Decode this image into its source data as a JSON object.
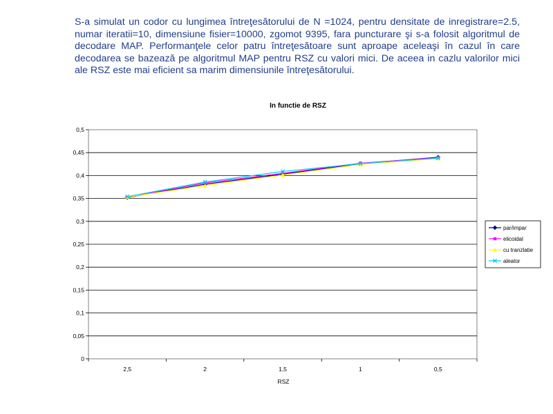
{
  "slide": {
    "paragraph": "S-a simulat un codor cu lungimea întreţesătorului de N =1024, pentru densitate de inregistrare=2.5, numar iteratii=10, dimensiune fisier=10000, zgomot 9395, fara puncturare şi s-a folosit algoritmul de decodare MAP. Performanţele celor patru întreţesătoare sunt aproape aceleaşi în cazul în care decodarea se bazează pe algoritmul MAP pentru RSZ cu valori mici. De aceea in cazlu valorilor mici ale RSZ este mai eficient sa marim dimensiunile întreţesătorului."
  },
  "chart_data": {
    "type": "line",
    "title": "In functie de RSZ",
    "xlabel": "RSZ",
    "ylabel": "",
    "categories": [
      "2,5",
      "2",
      "1,5",
      "1",
      "0,5"
    ],
    "ylim": [
      0,
      0.5
    ],
    "yticks": [
      "0",
      "0,05",
      "0,1",
      "0,15",
      "0,2",
      "0,25",
      "0,3",
      "0,35",
      "0,4",
      "0,45",
      "0,5"
    ],
    "grid": "horizontal",
    "legend_position": "right",
    "series": [
      {
        "name": "par/impar",
        "values": [
          0.352,
          0.381,
          0.403,
          0.426,
          0.44
        ],
        "color": "#000080",
        "marker": "diamond"
      },
      {
        "name": "elicoidal",
        "values": [
          0.353,
          0.384,
          0.405,
          0.427,
          0.439
        ],
        "color": "#ff00ff",
        "marker": "square"
      },
      {
        "name": "cu tranzlatie",
        "values": [
          0.353,
          0.378,
          0.401,
          0.424,
          0.437
        ],
        "color": "#ffff00",
        "marker": "triangle"
      },
      {
        "name": "aleator",
        "values": [
          0.354,
          0.386,
          0.409,
          0.426,
          0.438
        ],
        "color": "#00ccff",
        "marker": "x"
      }
    ]
  }
}
